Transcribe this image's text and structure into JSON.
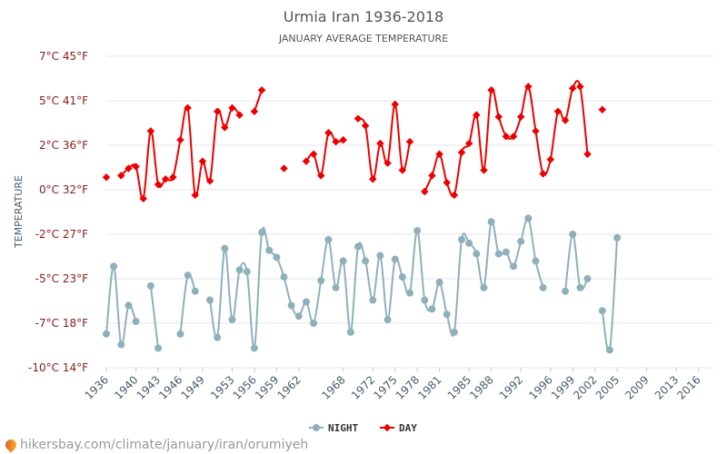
{
  "chart_data": {
    "type": "line",
    "title": "Urmia Iran 1936-2018",
    "subtitle": "JANUARY AVERAGE TEMPERATURE",
    "ylabel": "TEMPERATURE",
    "y_ticks": [
      "-10°C 14°F",
      "-7°C 18°F",
      "-5°C 23°F",
      "-2°C 27°F",
      "0°C 32°F",
      "2°C 36°F",
      "5°C 41°F",
      "7°C 45°F"
    ],
    "ylim": [
      -10,
      7
    ],
    "xlim": [
      1936,
      2018
    ],
    "x_ticks": [
      "1936",
      "1940",
      "1943",
      "1946",
      "1949",
      "1953",
      "1956",
      "1959",
      "1962",
      "1968",
      "1972",
      "1975",
      "1978",
      "1981",
      "1985",
      "1988",
      "1992",
      "1996",
      "1999",
      "2002",
      "2005",
      "2009",
      "2013",
      "2016"
    ],
    "grid": true,
    "legend_position": "bottom",
    "series": [
      {
        "name": "NIGHT",
        "color": "#8fb0ba",
        "points": [
          [
            1936,
            -8.1
          ],
          [
            1937,
            -4.3
          ],
          [
            1938,
            -8.7
          ],
          [
            1939,
            -6.5
          ],
          [
            1940,
            -7.4
          ],
          [
            1942,
            -5.4
          ],
          [
            1943,
            -8.9
          ],
          [
            1946,
            -8.1
          ],
          [
            1947,
            -4.8
          ],
          [
            1948,
            -5.7
          ],
          [
            1950,
            -6.2
          ],
          [
            1951,
            -8.3
          ],
          [
            1952,
            -3.3
          ],
          [
            1953,
            -7.3
          ],
          [
            1954,
            -4.5
          ],
          [
            1955,
            -4.6
          ],
          [
            1956,
            -8.9
          ],
          [
            1957,
            -2.4
          ],
          [
            1958,
            -3.4
          ],
          [
            1959,
            -3.8
          ],
          [
            1960,
            -4.9
          ],
          [
            1961,
            -6.5
          ],
          [
            1962,
            -7.1
          ],
          [
            1963,
            -6.3
          ],
          [
            1964,
            -7.5
          ],
          [
            1965,
            -5.1
          ],
          [
            1966,
            -2.8
          ],
          [
            1967,
            -5.5
          ],
          [
            1968,
            -4.0
          ],
          [
            1969,
            -8.0
          ],
          [
            1970,
            -3.2
          ],
          [
            1971,
            -4.0
          ],
          [
            1972,
            -6.2
          ],
          [
            1973,
            -3.7
          ],
          [
            1974,
            -7.3
          ],
          [
            1975,
            -3.9
          ],
          [
            1976,
            -4.9
          ],
          [
            1977,
            -5.8
          ],
          [
            1978,
            -2.3
          ],
          [
            1979,
            -6.2
          ],
          [
            1980,
            -6.7
          ],
          [
            1981,
            -5.2
          ],
          [
            1982,
            -7.0
          ],
          [
            1983,
            -8.0
          ],
          [
            1984,
            -2.8
          ],
          [
            1985,
            -3.0
          ],
          [
            1986,
            -3.6
          ],
          [
            1987,
            -5.5
          ],
          [
            1988,
            -1.8
          ],
          [
            1989,
            -3.6
          ],
          [
            1990,
            -3.5
          ],
          [
            1991,
            -4.3
          ],
          [
            1992,
            -2.9
          ],
          [
            1993,
            -1.6
          ],
          [
            1994,
            -4.0
          ],
          [
            1995,
            -5.5
          ],
          [
            1998,
            -5.7
          ],
          [
            1999,
            -2.5
          ],
          [
            2000,
            -5.5
          ],
          [
            2001,
            -5.0
          ],
          [
            2003,
            -6.8
          ],
          [
            2004,
            -9.0
          ],
          [
            2005,
            -2.7
          ]
        ]
      },
      {
        "name": "DAY",
        "color": "#ee0000",
        "points": [
          [
            1936,
            0.7
          ],
          [
            1938,
            0.8
          ],
          [
            1939,
            1.2
          ],
          [
            1940,
            1.3
          ],
          [
            1941,
            -0.5
          ],
          [
            1942,
            3.3
          ],
          [
            1943,
            0.3
          ],
          [
            1944,
            0.6
          ],
          [
            1945,
            0.7
          ],
          [
            1946,
            2.8
          ],
          [
            1947,
            4.6
          ],
          [
            1948,
            -0.3
          ],
          [
            1949,
            1.6
          ],
          [
            1950,
            0.5
          ],
          [
            1951,
            4.4
          ],
          [
            1952,
            3.5
          ],
          [
            1953,
            4.6
          ],
          [
            1954,
            4.2
          ],
          [
            1956,
            4.4
          ],
          [
            1957,
            5.6
          ],
          [
            1960,
            1.2
          ],
          [
            1963,
            1.6
          ],
          [
            1964,
            2.0
          ],
          [
            1965,
            0.8
          ],
          [
            1966,
            3.2
          ],
          [
            1967,
            2.7
          ],
          [
            1968,
            2.8
          ],
          [
            1970,
            4.0
          ],
          [
            1971,
            3.6
          ],
          [
            1972,
            0.6
          ],
          [
            1973,
            2.6
          ],
          [
            1974,
            1.5
          ],
          [
            1975,
            4.8
          ],
          [
            1976,
            1.1
          ],
          [
            1977,
            2.7
          ],
          [
            1979,
            -0.1
          ],
          [
            1980,
            0.8
          ],
          [
            1981,
            2.0
          ],
          [
            1982,
            0.4
          ],
          [
            1983,
            -0.3
          ],
          [
            1984,
            2.1
          ],
          [
            1985,
            2.6
          ],
          [
            1986,
            4.2
          ],
          [
            1987,
            1.1
          ],
          [
            1988,
            5.6
          ],
          [
            1989,
            4.1
          ],
          [
            1990,
            3.0
          ],
          [
            1991,
            3.0
          ],
          [
            1992,
            4.1
          ],
          [
            1993,
            5.8
          ],
          [
            1994,
            3.3
          ],
          [
            1995,
            0.9
          ],
          [
            1996,
            1.7
          ],
          [
            1997,
            4.4
          ],
          [
            1998,
            3.9
          ],
          [
            1999,
            5.7
          ],
          [
            2000,
            5.8
          ],
          [
            2001,
            2.0
          ],
          [
            2003,
            4.5
          ]
        ]
      }
    ]
  },
  "footer_text": "hikersbay.com/climate/january/iran/orumiyeh"
}
